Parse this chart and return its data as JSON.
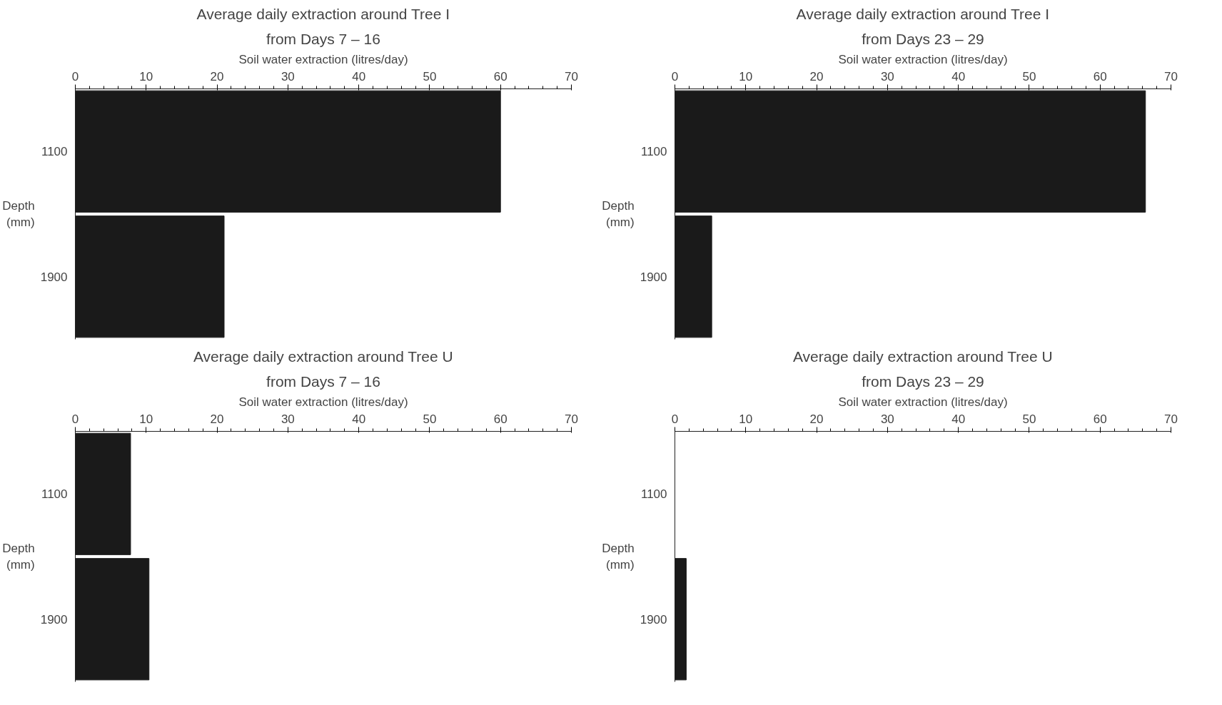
{
  "chart_data": [
    {
      "type": "bar",
      "orientation": "horizontal",
      "title": "Average daily extraction around Tree I",
      "subtitle": "from Days 7 – 16",
      "xlabel": "Soil water extraction (litres/day)",
      "ylabel": "Depth\n(mm)",
      "categories": [
        "1100",
        "1900"
      ],
      "values": [
        60,
        21
      ],
      "color": "#1a1a1a",
      "xlim": [
        0,
        70
      ],
      "xticks": [
        0,
        10,
        20,
        30,
        40,
        50,
        60,
        70
      ],
      "grid": false
    },
    {
      "type": "bar",
      "orientation": "horizontal",
      "title": "Average daily extraction around Tree I",
      "subtitle": "from Days 23 – 29",
      "xlabel": "Soil water extraction (litres/day)",
      "ylabel": "Depth\n(mm)",
      "categories": [
        "1100",
        "1900"
      ],
      "values": [
        66.4,
        5.2
      ],
      "color": "#1a1a1a",
      "xlim": [
        0,
        70
      ],
      "xticks": [
        0,
        10,
        20,
        30,
        40,
        50,
        60,
        70
      ],
      "grid": false
    },
    {
      "type": "bar",
      "orientation": "horizontal",
      "title": "Average daily extraction around Tree U",
      "subtitle": "from Days 7 – 16",
      "xlabel": "Soil water extraction (litres/day)",
      "ylabel": "Depth\n(mm)",
      "categories": [
        "1100",
        "1900"
      ],
      "values": [
        7.8,
        10.4
      ],
      "color": "#1a1a1a",
      "xlim": [
        0,
        70
      ],
      "xticks": [
        0,
        10,
        20,
        30,
        40,
        50,
        60,
        70
      ],
      "grid": false
    },
    {
      "type": "bar",
      "orientation": "horizontal",
      "title": "Average daily extraction around Tree U",
      "subtitle": "from Days 23 – 29",
      "xlabel": "Soil water extraction (litres/day)",
      "ylabel": "Depth\n(mm)",
      "categories": [
        "1100",
        "1900"
      ],
      "values": [
        0,
        1.6
      ],
      "color": "#1a1a1a",
      "xlim": [
        0,
        70
      ],
      "xticks": [
        0,
        10,
        20,
        30,
        40,
        50,
        60,
        70
      ],
      "grid": false
    }
  ]
}
